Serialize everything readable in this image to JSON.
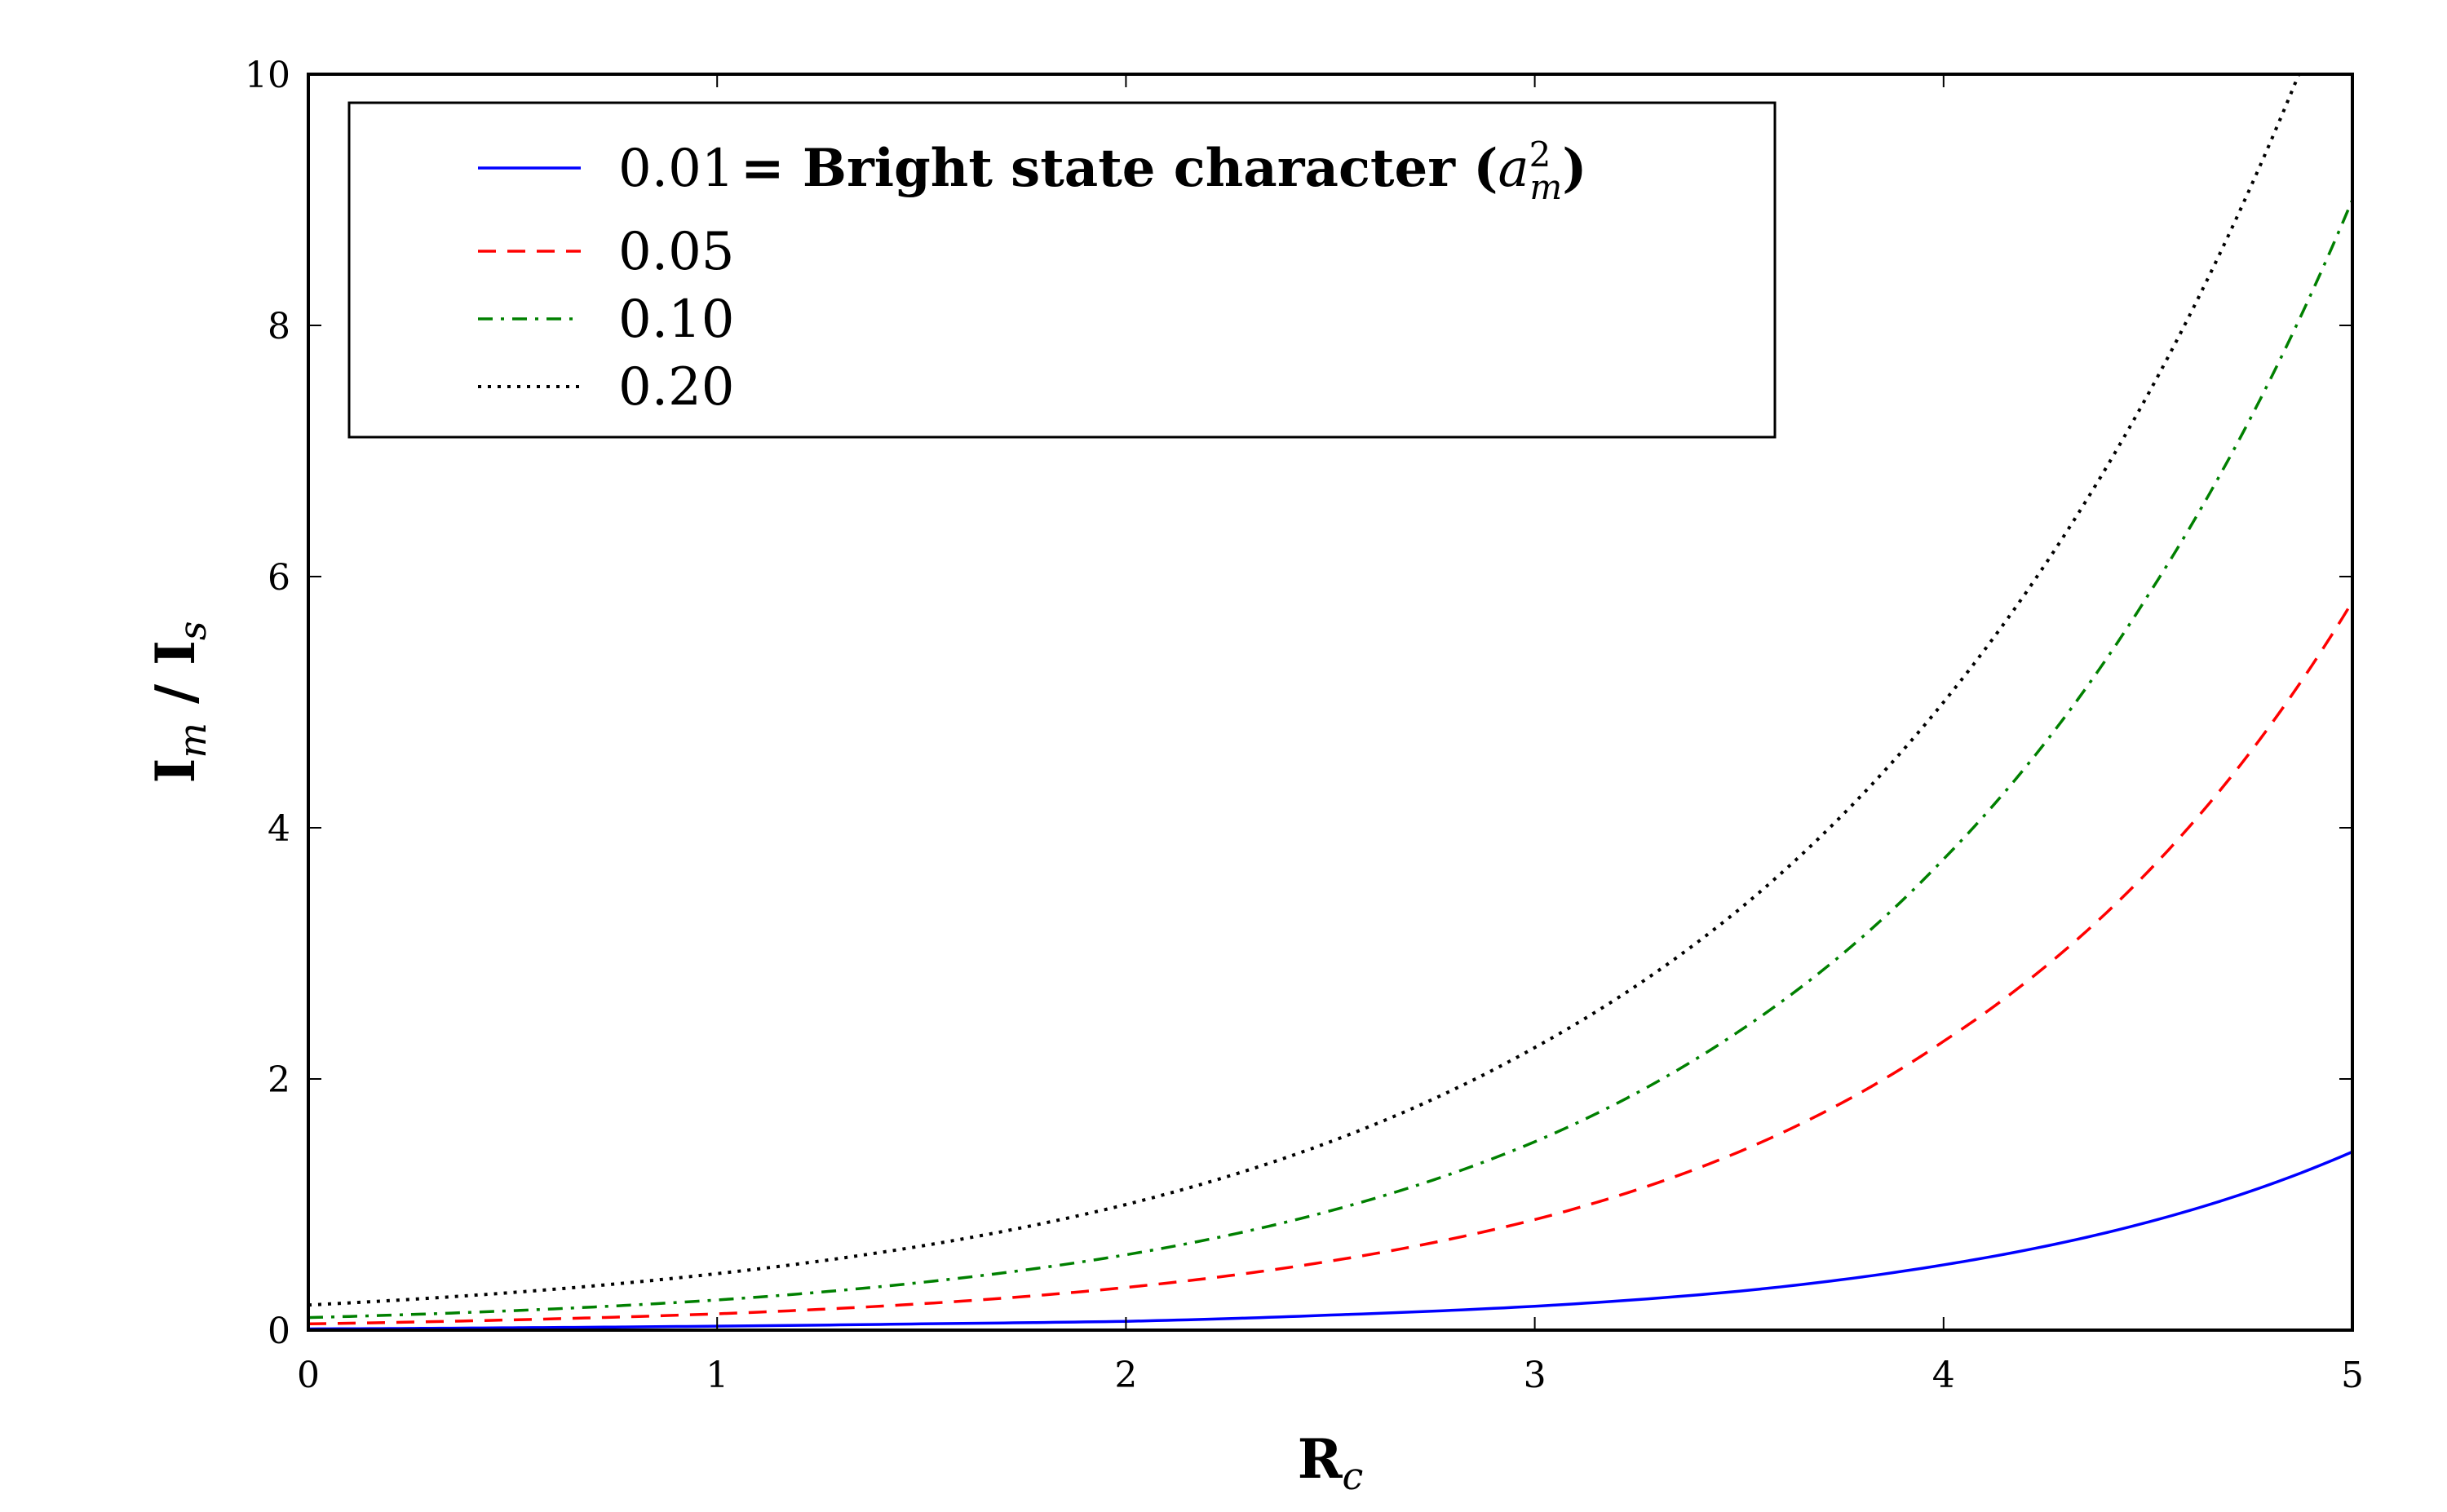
{
  "chart_data": {
    "type": "line",
    "xlabel": {
      "main": "R",
      "sub": "c"
    },
    "ylabel": {
      "main": "I",
      "sub1": "m",
      "sep": " / I",
      "sub2": "s"
    },
    "xlim": [
      0,
      5
    ],
    "ylim": [
      0,
      10
    ],
    "xticks": [
      "0",
      "1",
      "2",
      "3",
      "4",
      "5"
    ],
    "yticks": [
      "0",
      "2",
      "4",
      "6",
      "8",
      "10"
    ],
    "grid": false,
    "legend_position": "top-left",
    "legend_note": {
      "text": " = Bright state character (",
      "var": "a",
      "sup": "2",
      "sub": "m",
      "close": ")"
    },
    "x": [
      0,
      0.5,
      1,
      1.5,
      2,
      2.5,
      3,
      3.5,
      4,
      4.5,
      5
    ],
    "series": [
      {
        "name": "0.01",
        "color": "#0000ff",
        "style": "solid",
        "values": [
          0.01,
          0.019,
          0.032,
          0.05,
          0.07,
          0.12,
          0.19,
          0.31,
          0.52,
          0.86,
          1.42
        ]
      },
      {
        "name": "0.05",
        "color": "#ff0000",
        "style": "dashed",
        "values": [
          0.05,
          0.082,
          0.13,
          0.21,
          0.34,
          0.55,
          0.88,
          1.42,
          2.3,
          3.65,
          5.8
        ]
      },
      {
        "name": "0.10",
        "color": "#008000",
        "style": "dashdot",
        "values": [
          0.1,
          0.155,
          0.24,
          0.38,
          0.6,
          0.95,
          1.5,
          2.38,
          3.75,
          5.85,
          9.0
        ]
      },
      {
        "name": "0.20",
        "color": "#000000",
        "style": "dotted",
        "values": [
          0.2,
          0.3,
          0.45,
          0.67,
          1.0,
          1.5,
          2.25,
          3.35,
          5.0,
          7.45,
          11.1
        ]
      }
    ]
  }
}
